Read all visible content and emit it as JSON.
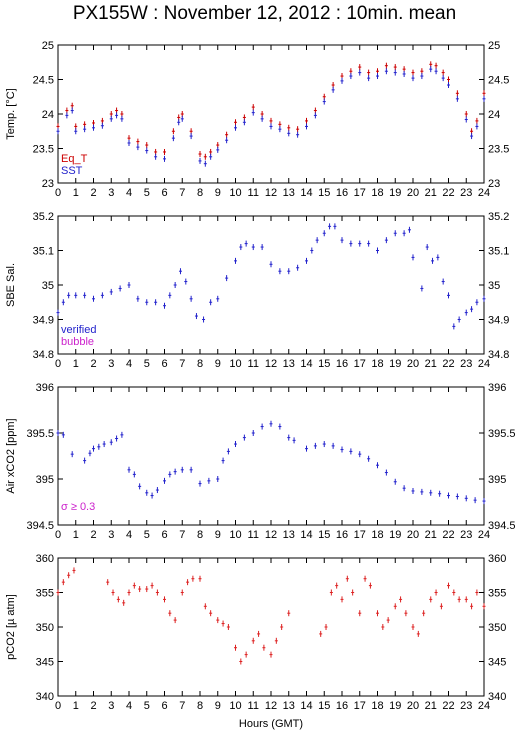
{
  "title": "PX155W : November 12, 2012 : 10min. mean",
  "xlabel": "Hours (GMT)",
  "colors": {
    "eq_t": "#cc0000",
    "sst": "#2222cc",
    "verified": "#2222cc",
    "bubble": "#cc22cc",
    "pco2": "#dd2222"
  },
  "chart_data": [
    {
      "type": "scatter",
      "id": "temp",
      "ylabel": "Temp. [°C]",
      "ylim": [
        23,
        25
      ],
      "yticks": [
        "23",
        "23.5",
        "24",
        "24.5",
        "25"
      ],
      "xlim": [
        0,
        24
      ],
      "xticks": [
        "0",
        "1",
        "2",
        "3",
        "4",
        "5",
        "6",
        "7",
        "8",
        "9",
        "10",
        "11",
        "12",
        "13",
        "14",
        "15",
        "16",
        "17",
        "18",
        "19",
        "20",
        "21",
        "22",
        "23",
        "24"
      ],
      "legend": [
        "Eq_T",
        "SST"
      ],
      "series": [
        {
          "name": "Eq_T",
          "color": "#cc0000",
          "x": [
            0,
            0.5,
            0.8,
            1,
            1.5,
            2,
            2.5,
            3,
            3.3,
            3.6,
            4,
            4.5,
            5,
            5.5,
            6,
            6.5,
            6.8,
            7,
            7.5,
            8,
            8.3,
            8.6,
            9,
            9.5,
            10,
            10.5,
            11,
            11.5,
            12,
            12.5,
            13,
            13.5,
            14,
            14.5,
            15,
            15.5,
            16,
            16.5,
            17,
            17.5,
            18,
            18.5,
            19,
            19.5,
            20,
            20.5,
            21,
            21.3,
            21.7,
            22,
            22.5,
            23,
            23.3,
            23.6,
            24
          ],
          "y": [
            23.82,
            24.05,
            24.12,
            23.82,
            23.85,
            23.87,
            23.9,
            24.0,
            24.05,
            24.0,
            23.65,
            23.6,
            23.55,
            23.45,
            23.45,
            23.75,
            23.95,
            24.0,
            23.75,
            23.42,
            23.38,
            23.45,
            23.55,
            23.7,
            23.88,
            23.95,
            24.1,
            24.0,
            23.9,
            23.85,
            23.8,
            23.78,
            23.9,
            24.05,
            24.25,
            24.42,
            24.55,
            24.62,
            24.68,
            24.6,
            24.62,
            24.7,
            24.68,
            24.65,
            24.6,
            24.62,
            24.72,
            24.7,
            24.6,
            24.5,
            24.3,
            24.0,
            23.75,
            23.9,
            24.3
          ]
        },
        {
          "name": "SST",
          "color": "#2222cc",
          "x": [
            0,
            0.5,
            0.8,
            1,
            1.5,
            2,
            2.5,
            3,
            3.3,
            3.6,
            4,
            4.5,
            5,
            5.5,
            6,
            6.5,
            6.8,
            7,
            7.5,
            8,
            8.3,
            8.6,
            9,
            9.5,
            10,
            10.5,
            11,
            11.5,
            12,
            12.5,
            13,
            13.5,
            14,
            14.5,
            15,
            15.5,
            16,
            16.5,
            17,
            17.5,
            18,
            18.5,
            19,
            19.5,
            20,
            20.5,
            21,
            21.3,
            21.7,
            22,
            22.5,
            23,
            23.3,
            23.6,
            24
          ],
          "y": [
            23.75,
            23.98,
            24.05,
            23.75,
            23.78,
            23.8,
            23.83,
            23.93,
            23.98,
            23.93,
            23.58,
            23.52,
            23.47,
            23.38,
            23.35,
            23.65,
            23.88,
            23.93,
            23.68,
            23.32,
            23.28,
            23.38,
            23.48,
            23.62,
            23.8,
            23.88,
            24.02,
            23.93,
            23.82,
            23.78,
            23.72,
            23.7,
            23.82,
            23.98,
            24.18,
            24.35,
            24.48,
            24.55,
            24.6,
            24.52,
            24.55,
            24.62,
            24.6,
            24.58,
            24.52,
            24.55,
            24.65,
            24.62,
            24.52,
            24.42,
            24.22,
            23.92,
            23.68,
            23.82,
            24.22
          ]
        }
      ]
    },
    {
      "type": "scatter",
      "id": "sal",
      "ylabel": "SBE Sal.",
      "ylim": [
        34.8,
        35.2
      ],
      "yticks": [
        "34.8",
        "34.9",
        "35",
        "35.1",
        "35.2"
      ],
      "xlim": [
        0,
        24
      ],
      "legend": [
        "verified",
        "bubble"
      ],
      "series": [
        {
          "name": "verified",
          "color": "#2222cc",
          "x": [
            0,
            0.3,
            0.6,
            1,
            1.5,
            2,
            2.5,
            3,
            3.5,
            4,
            4.5,
            5,
            5.5,
            6,
            6.3,
            6.6,
            6.9,
            7.2,
            7.5,
            7.8,
            8.2,
            8.6,
            9,
            9.5,
            10,
            10.3,
            10.6,
            11,
            11.5,
            12,
            12.5,
            13,
            13.5,
            14,
            14.3,
            14.6,
            15,
            15.3,
            15.6,
            16,
            16.5,
            17,
            17.5,
            18,
            18.5,
            19,
            19.5,
            19.8,
            20,
            20.5,
            20.8,
            21.1,
            21.4,
            21.7,
            22,
            22.3,
            22.6,
            23,
            23.3,
            23.6,
            24
          ],
          "y": [
            34.92,
            34.95,
            34.97,
            34.97,
            34.97,
            34.96,
            34.97,
            34.98,
            34.99,
            35.0,
            34.96,
            34.95,
            34.95,
            34.94,
            34.97,
            35.0,
            35.04,
            35.01,
            34.96,
            34.91,
            34.9,
            34.95,
            34.96,
            35.02,
            35.07,
            35.11,
            35.12,
            35.11,
            35.11,
            35.06,
            35.04,
            35.04,
            35.05,
            35.07,
            35.1,
            35.13,
            35.15,
            35.17,
            35.17,
            35.13,
            35.12,
            35.12,
            35.12,
            35.1,
            35.13,
            35.15,
            35.15,
            35.16,
            35.08,
            34.99,
            35.11,
            35.07,
            35.08,
            35.01,
            34.97,
            34.88,
            34.9,
            34.92,
            34.93,
            34.95,
            34.96
          ]
        }
      ]
    },
    {
      "type": "scatter",
      "id": "airco2",
      "ylabel": "Air xCO2 [ppm]",
      "ylim": [
        394.5,
        396
      ],
      "yticks": [
        "394.5",
        "395",
        "395.5",
        "396"
      ],
      "xlim": [
        0,
        24
      ],
      "annotation": "σ ≥ 0.3",
      "series": [
        {
          "name": "Air xCO2",
          "color": "#2222cc",
          "x": [
            0,
            0.3,
            0.8,
            1.5,
            1.8,
            2,
            2.3,
            2.6,
            3,
            3.3,
            3.6,
            4,
            4.3,
            4.6,
            5,
            5.3,
            5.6,
            6,
            6.3,
            6.6,
            7,
            7.5,
            8,
            8.5,
            9,
            9.3,
            9.6,
            10,
            10.5,
            11,
            11.5,
            12,
            12.5,
            13,
            13.3,
            14,
            14.5,
            15,
            15.5,
            16,
            16.5,
            17,
            17.5,
            18,
            18.5,
            19,
            19.5,
            20,
            20.5,
            21,
            21.5,
            22,
            22.5,
            23,
            23.5,
            24
          ],
          "y": [
            395.5,
            395.48,
            395.27,
            395.2,
            395.28,
            395.33,
            395.35,
            395.38,
            395.4,
            395.44,
            395.48,
            395.1,
            395.05,
            394.92,
            394.85,
            394.82,
            394.88,
            394.98,
            395.05,
            395.08,
            395.1,
            395.1,
            394.95,
            394.98,
            395.0,
            395.2,
            395.3,
            395.38,
            395.45,
            395.5,
            395.57,
            395.6,
            395.57,
            395.45,
            395.42,
            395.33,
            395.36,
            395.38,
            395.36,
            395.32,
            395.3,
            395.27,
            395.22,
            395.15,
            395.07,
            394.97,
            394.9,
            394.87,
            394.86,
            394.85,
            394.84,
            394.82,
            394.81,
            394.79,
            394.77,
            394.76
          ]
        }
      ]
    },
    {
      "type": "scatter",
      "id": "pco2",
      "ylabel": "pCO2 [µ atm]",
      "ylim": [
        340,
        360
      ],
      "yticks": [
        "340",
        "345",
        "350",
        "355",
        "360"
      ],
      "xlim": [
        0,
        24
      ],
      "series": [
        {
          "name": "pCO2",
          "color": "#dd2222",
          "x": [
            0,
            0.3,
            0.6,
            0.9,
            2.8,
            3.1,
            3.4,
            3.7,
            4,
            4.3,
            4.6,
            5,
            5.3,
            5.6,
            6,
            6.3,
            6.6,
            7,
            7.3,
            7.6,
            8,
            8.3,
            8.6,
            9,
            9.3,
            9.6,
            10,
            10.3,
            10.6,
            11,
            11.3,
            11.6,
            12,
            12.3,
            12.6,
            13,
            14.8,
            15.1,
            15.4,
            15.7,
            16,
            16.3,
            16.6,
            17,
            17.3,
            17.6,
            18,
            18.3,
            18.6,
            19,
            19.3,
            19.6,
            20,
            20.3,
            20.6,
            21,
            21.3,
            21.6,
            22,
            22.3,
            22.6,
            23,
            23.3,
            23.6,
            24
          ],
          "y": [
            355,
            356.5,
            357.5,
            358.2,
            356.5,
            355,
            354,
            353.5,
            355,
            356,
            355.5,
            355.5,
            356,
            355,
            354,
            352,
            351,
            355,
            356.5,
            357,
            357,
            353,
            352,
            351,
            350.5,
            350,
            347,
            345,
            346,
            348,
            349,
            347,
            346,
            348,
            350,
            352,
            349,
            350,
            355,
            356,
            354,
            357,
            355,
            352,
            357,
            356,
            352,
            350,
            351,
            353,
            354,
            352,
            350,
            349,
            352,
            354,
            355,
            353,
            356,
            355,
            354,
            354,
            353,
            355,
            353
          ]
        }
      ]
    }
  ]
}
